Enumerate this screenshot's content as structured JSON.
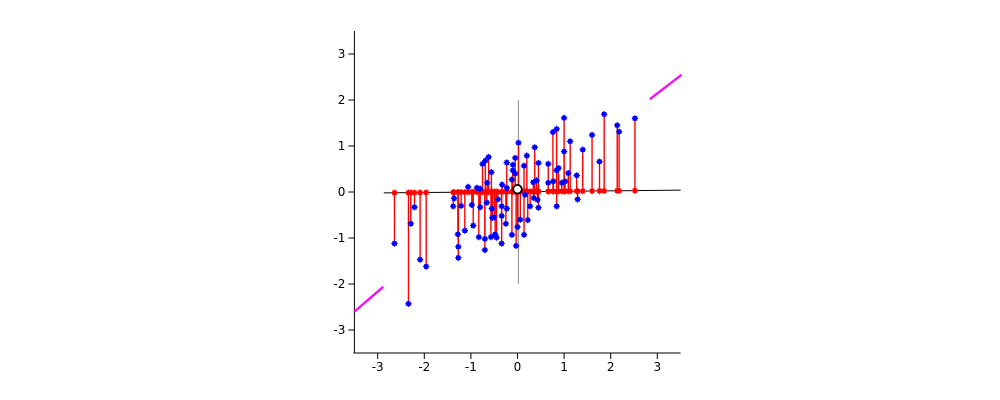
{
  "figure": {
    "background": "#ffffff",
    "title": ""
  },
  "chart_data": {
    "type": "scatter",
    "title": "",
    "xlabel": "",
    "ylabel": "",
    "grid": false,
    "legend": null,
    "axes": {
      "xlim": [
        -3.5,
        3.5
      ],
      "ylim": [
        -3.5,
        3.5
      ],
      "xticks": [
        -3,
        -2,
        -1,
        0,
        1,
        2,
        3
      ],
      "yticks": [
        -3,
        -2,
        -1,
        0,
        1,
        2,
        3
      ],
      "xtick_labels": [
        "-3",
        "-2",
        "-1",
        "0",
        "1",
        "2",
        "3"
      ],
      "ytick_labels": [
        "-3",
        "-2",
        "-1",
        "0",
        "1",
        "2",
        "3"
      ],
      "tick_direction": "out",
      "box": false,
      "axis_color": "#000000"
    },
    "series": [
      {
        "name": "observations-with-residual-stems",
        "marker": "square-asterisk",
        "marker_color": "#0000ff",
        "stem_color": "#ff0000",
        "stem_base_marker_color": "#ff0000",
        "points": [
          [
            -2.64,
            -1.12
          ],
          [
            -2.34,
            -2.43
          ],
          [
            -2.29,
            -0.69
          ],
          [
            -2.21,
            -0.33
          ],
          [
            -2.09,
            -1.47
          ],
          [
            -1.96,
            -1.62
          ],
          [
            -1.38,
            -0.31
          ],
          [
            -1.36,
            -0.14
          ],
          [
            -1.28,
            -0.92
          ],
          [
            -1.27,
            -1.19
          ],
          [
            -1.27,
            -1.43
          ],
          [
            -1.21,
            -0.3
          ],
          [
            -1.13,
            -0.84
          ],
          [
            -1.06,
            0.11
          ],
          [
            -0.98,
            -0.28
          ],
          [
            -0.95,
            -0.73
          ],
          [
            -0.87,
            0.09
          ],
          [
            -0.83,
            -0.98
          ],
          [
            -0.8,
            -0.33
          ],
          [
            -0.8,
            0.07
          ],
          [
            -0.75,
            0.61
          ],
          [
            -0.7,
            -1.02
          ],
          [
            -0.7,
            -1.26
          ],
          [
            -0.69,
            0.68
          ],
          [
            -0.66,
            -0.23
          ],
          [
            -0.65,
            0.2
          ],
          [
            -0.62,
            0.76
          ],
          [
            -0.57,
            -0.98
          ],
          [
            -0.56,
            0.43
          ],
          [
            -0.55,
            -0.36
          ],
          [
            -0.54,
            -0.56
          ],
          [
            -0.5,
            -0.55
          ],
          [
            -0.48,
            -0.92
          ],
          [
            -0.45,
            -0.99
          ],
          [
            -0.42,
            -0.16
          ],
          [
            -0.34,
            -1.12
          ],
          [
            -0.34,
            -0.52
          ],
          [
            -0.34,
            -0.31
          ],
          [
            -0.33,
            0.16
          ],
          [
            -0.25,
            -0.69
          ],
          [
            -0.23,
            -0.36
          ],
          [
            -0.23,
            0.09
          ],
          [
            -0.23,
            0.64
          ],
          [
            -0.12,
            -0.93
          ],
          [
            -0.12,
            0.27
          ],
          [
            -0.1,
            0.47
          ],
          [
            -0.1,
            0.59
          ],
          [
            -0.05,
            0.4
          ],
          [
            -0.05,
            0.74
          ],
          [
            -0.03,
            -1.17
          ],
          [
            0.0,
            -0.76
          ],
          [
            0.02,
            1.07
          ],
          [
            0.06,
            -0.6
          ],
          [
            0.14,
            -0.93
          ],
          [
            0.14,
            0.57
          ],
          [
            0.16,
            -0.06
          ],
          [
            0.2,
            0.79
          ],
          [
            0.22,
            -0.61
          ],
          [
            0.27,
            -0.31
          ],
          [
            0.34,
            0.21
          ],
          [
            0.35,
            -0.13
          ],
          [
            0.37,
            0.97
          ],
          [
            0.41,
            0.25
          ],
          [
            0.43,
            -0.17
          ],
          [
            0.45,
            0.63
          ],
          [
            0.45,
            -0.34
          ],
          [
            0.66,
            0.61
          ],
          [
            0.66,
            0.2
          ],
          [
            0.76,
            1.3
          ],
          [
            0.77,
            0.23
          ],
          [
            0.84,
            1.37
          ],
          [
            0.84,
            0.47
          ],
          [
            0.84,
            -0.31
          ],
          [
            0.88,
            0.52
          ],
          [
            0.95,
            0.2
          ],
          [
            1.0,
            0.88
          ],
          [
            1.0,
            1.61
          ],
          [
            1.02,
            0.23
          ],
          [
            1.09,
            0.41
          ],
          [
            1.13,
            1.1
          ],
          [
            1.27,
            0.36
          ],
          [
            1.29,
            -0.16
          ],
          [
            1.4,
            0.92
          ],
          [
            1.6,
            1.24
          ],
          [
            1.76,
            0.66
          ],
          [
            1.86,
            1.69
          ],
          [
            2.14,
            1.45
          ],
          [
            2.18,
            1.31
          ],
          [
            2.52,
            1.6
          ]
        ]
      }
    ],
    "fit_line": {
      "name": "fitted-regression-line",
      "color": "#000000",
      "points": [
        [
          -2.87,
          -0.02
        ],
        [
          3.5,
          0.04
        ]
      ]
    },
    "true_function_segments": [
      {
        "name": "true-function-segment-left",
        "color": "#ff00ff",
        "points": [
          [
            -3.5,
            -2.6
          ],
          [
            -2.88,
            -2.06
          ]
        ]
      },
      {
        "name": "true-function-segment-right",
        "color": "#ff00ff",
        "points": [
          [
            2.84,
            2.02
          ],
          [
            3.52,
            2.55
          ]
        ]
      }
    ],
    "query_vertical_line": {
      "name": "query-point-vertical-line",
      "color": "#999999",
      "x": 0.02,
      "y_from": -2.0,
      "y_to": 2.0
    },
    "query_point": {
      "name": "fit-at-query-point",
      "style": "open-circle",
      "edge_color": "#000000",
      "fill_color": "#ffffff",
      "x": 0.0,
      "y": 0.06
    }
  }
}
